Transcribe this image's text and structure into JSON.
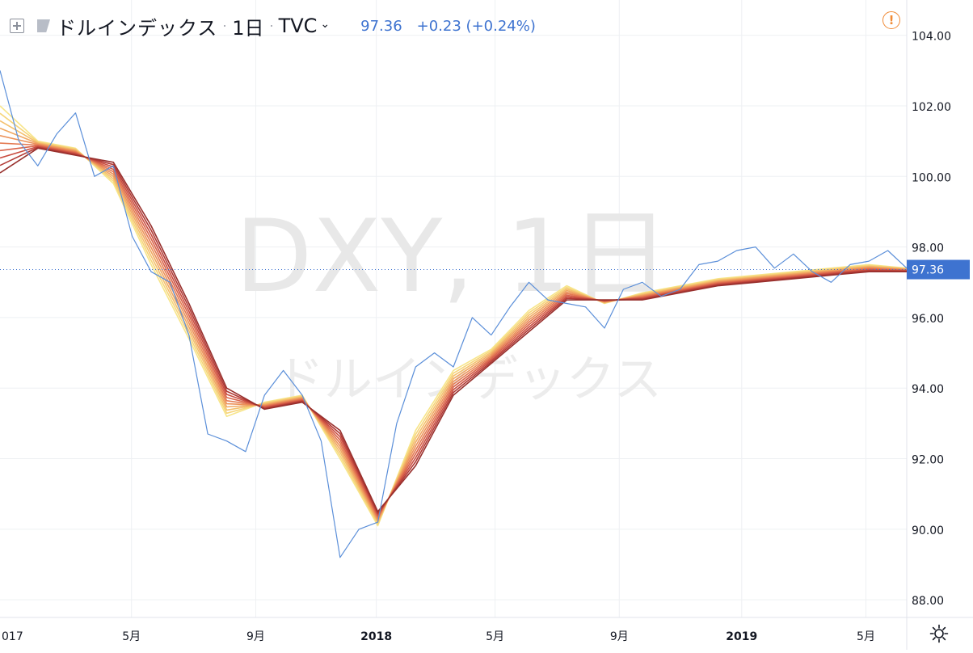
{
  "legend": {
    "symbol_name": "ドルインデックス",
    "interval": "1日",
    "exchange": "TVC",
    "last_price": "97.36",
    "change": "+0.23 (+0.24%)"
  },
  "watermark": {
    "line1": "DXY, 1日",
    "line2": "ドルインデックス"
  },
  "icons": {
    "add": "plus-square-icon",
    "flag": "flag-icon",
    "chevron": "chevron-down-icon",
    "alert": "alert-icon",
    "settings": "gear-icon"
  },
  "colors": {
    "price_line": "#5b8fd9",
    "last_price_badge": "#3e73d0",
    "ribbon": [
      "#f7e58a",
      "#f6d57a",
      "#f4c06d",
      "#f0a862",
      "#ec925a",
      "#e47a52",
      "#d9634a",
      "#c94d40",
      "#b23a35",
      "#98302d"
    ],
    "alert": "#f08a35"
  },
  "chart_data": {
    "type": "line",
    "title": "ドルインデックス",
    "ylim": [
      87.5,
      105
    ],
    "y_ticks": [
      "88.00",
      "90.00",
      "92.00",
      "94.00",
      "96.00",
      "98.00",
      "100.00",
      "102.00",
      "104.00"
    ],
    "x_ticks": [
      "017",
      "5月",
      "9月",
      "2018",
      "5月",
      "9月",
      "2019",
      "5月"
    ],
    "last_value": "97.36",
    "grid": true,
    "series": [
      {
        "kind": "price",
        "x": [
          0,
          5,
          10,
          15,
          20,
          25,
          30,
          35,
          40,
          45,
          50,
          55,
          60,
          65,
          70,
          75,
          80,
          85,
          90,
          95,
          100,
          105,
          110,
          115,
          120,
          125,
          130
        ],
        "values": [
          103.0,
          101.0,
          100.3,
          101.2,
          101.8,
          100.0,
          100.3,
          98.3,
          97.3,
          97.0,
          95.5,
          92.7,
          92.5,
          92.2,
          93.8,
          94.5,
          93.8,
          92.5,
          89.2,
          90.0,
          90.2,
          93.0,
          94.6,
          95.0,
          94.6,
          96.0,
          95.5
        ]
      },
      {
        "kind": "price",
        "x": [
          130,
          135,
          140,
          145,
          150,
          155,
          160,
          165,
          170,
          175,
          180,
          185,
          190,
          195,
          200,
          205,
          210,
          215,
          220,
          225,
          230,
          235,
          240
        ],
        "values": [
          95.5,
          96.3,
          97.0,
          96.5,
          96.4,
          96.3,
          95.7,
          96.8,
          97.0,
          96.6,
          96.8,
          97.5,
          97.6,
          97.9,
          98.0,
          97.4,
          97.8,
          97.3,
          97.0,
          97.5,
          97.6,
          97.9,
          97.4
        ]
      },
      {
        "kind": "ribbon_top",
        "x": [
          0,
          10,
          20,
          30,
          40,
          50,
          60,
          70,
          80,
          90,
          100,
          110,
          120,
          130,
          140,
          150,
          160,
          170,
          180,
          190,
          200,
          210,
          220,
          230,
          240
        ],
        "values": [
          102.0,
          101.0,
          100.8,
          99.8,
          97.5,
          95.4,
          93.2,
          93.6,
          93.8,
          92.0,
          90.1,
          92.8,
          94.5,
          95.1,
          96.2,
          96.9,
          96.4,
          96.7,
          96.9,
          97.1,
          97.2,
          97.3,
          97.4,
          97.5,
          97.4
        ]
      },
      {
        "kind": "ribbon_bottom",
        "x": [
          0,
          10,
          20,
          30,
          40,
          50,
          60,
          70,
          80,
          90,
          100,
          110,
          120,
          130,
          140,
          150,
          160,
          170,
          180,
          190,
          200,
          210,
          220,
          230,
          240
        ],
        "values": [
          100.1,
          100.8,
          100.6,
          100.4,
          98.6,
          96.4,
          94.0,
          93.4,
          93.6,
          92.8,
          90.5,
          91.8,
          93.8,
          94.7,
          95.6,
          96.5,
          96.5,
          96.5,
          96.7,
          96.9,
          97.0,
          97.1,
          97.2,
          97.3,
          97.3
        ]
      }
    ]
  }
}
